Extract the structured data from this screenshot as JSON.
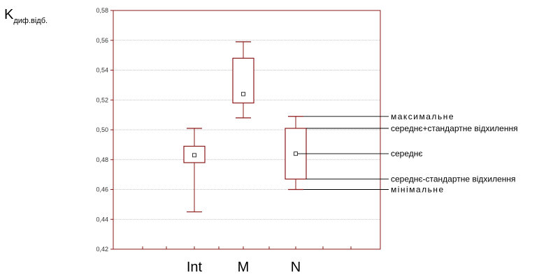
{
  "chart_data": {
    "type": "box",
    "ylabel_main": "K",
    "ylabel_sub": "диф.відб.",
    "ylim": [
      0.42,
      0.58
    ],
    "ytick_labels": [
      "0,42",
      "0,44",
      "0,46",
      "0,48",
      "0,50",
      "0,52",
      "0,54",
      "0,56",
      "0,58"
    ],
    "grid": "horizontal",
    "categories": [
      "Int",
      "M",
      "N"
    ],
    "boxes": [
      {
        "category": "Int",
        "min": 0.445,
        "q_low": 0.478,
        "mean": 0.483,
        "q_high": 0.489,
        "max": 0.501
      },
      {
        "category": "M",
        "min": 0.508,
        "q_low": 0.518,
        "mean": 0.524,
        "q_high": 0.548,
        "max": 0.559
      },
      {
        "category": "N",
        "min": 0.46,
        "q_low": 0.467,
        "mean": 0.484,
        "q_high": 0.501,
        "max": 0.509
      }
    ],
    "annotations": [
      {
        "text": "максимальне",
        "target": "max"
      },
      {
        "text": "середнє+стандартне відхилення",
        "target": "q_high"
      },
      {
        "text": "середнє",
        "target": "mean"
      },
      {
        "text": "середнє-стандартне відхилення",
        "target": "q_low"
      },
      {
        "text": "мінімальне",
        "target": "min"
      }
    ],
    "colors": {
      "box": "#8b1a1a",
      "grid": "#b0b0b0",
      "axis": "#8b1a1a",
      "annotation_line": "#000000"
    }
  }
}
